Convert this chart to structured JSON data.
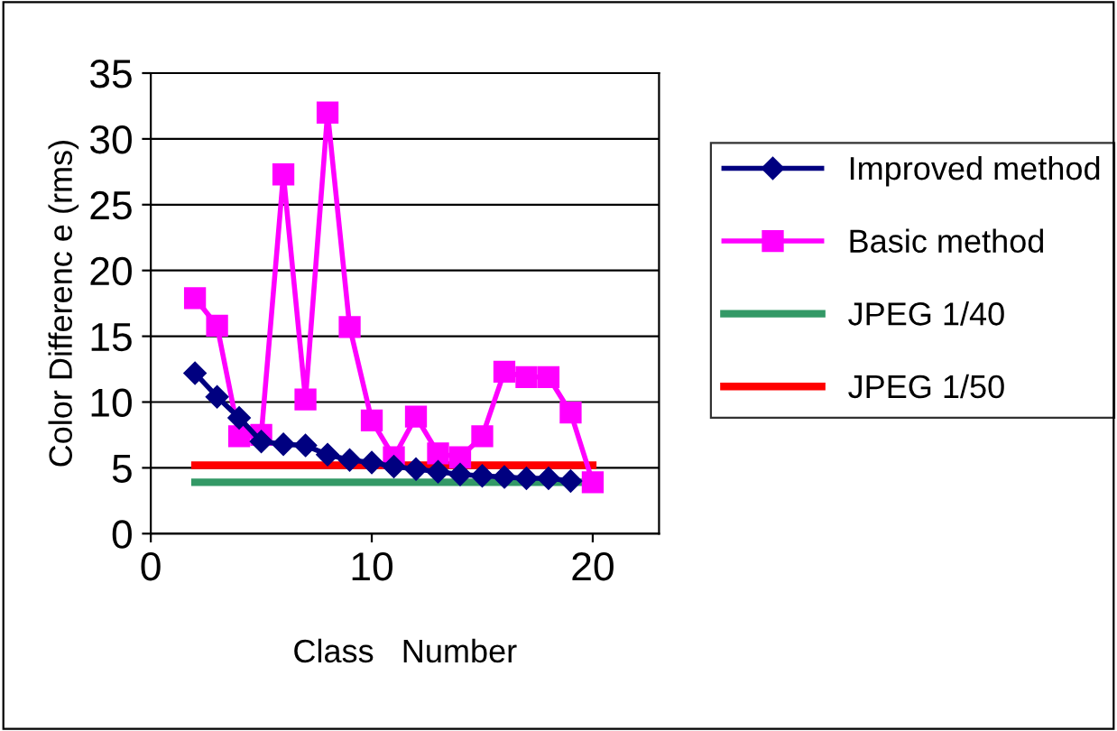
{
  "chart_data": {
    "type": "line",
    "xlabel": "Class   Number",
    "ylabel": "Color Differenc e (rms)",
    "xlim": [
      0,
      23
    ],
    "xticks": [
      0,
      10,
      20
    ],
    "ylim": [
      0,
      35
    ],
    "yticks": [
      0,
      5,
      10,
      15,
      20,
      25,
      30,
      35
    ],
    "grid": "y",
    "legend": "right",
    "series": [
      {
        "name": "Improved method",
        "color": "#000080",
        "marker": "diamond",
        "x": [
          2,
          3,
          4,
          5,
          6,
          7,
          8,
          9,
          10,
          11,
          12,
          13,
          14,
          15,
          16,
          17,
          18,
          19
        ],
        "values": [
          12.2,
          10.4,
          8.8,
          7.0,
          6.8,
          6.7,
          6.0,
          5.6,
          5.4,
          5.1,
          4.9,
          4.7,
          4.5,
          4.4,
          4.3,
          4.2,
          4.2,
          4.0
        ]
      },
      {
        "name": "Basic method",
        "color": "#ff00ff",
        "marker": "square",
        "x": [
          2,
          3,
          4,
          5,
          6,
          7,
          8,
          9,
          10,
          11,
          12,
          13,
          14,
          15,
          16,
          17,
          18,
          19,
          20
        ],
        "values": [
          17.9,
          15.8,
          7.4,
          7.5,
          27.3,
          10.2,
          32.0,
          15.7,
          8.6,
          5.8,
          8.9,
          6.1,
          5.8,
          7.4,
          12.3,
          11.9,
          11.9,
          9.2,
          3.9
        ]
      },
      {
        "name": "JPEG 1/40",
        "color": "#339966",
        "marker": "none",
        "x": [
          2,
          20
        ],
        "values": [
          3.9,
          3.9
        ]
      },
      {
        "name": "JPEG 1/50",
        "color": "#ff0000",
        "marker": "none",
        "x": [
          2,
          20
        ],
        "values": [
          5.2,
          5.2
        ]
      }
    ]
  }
}
